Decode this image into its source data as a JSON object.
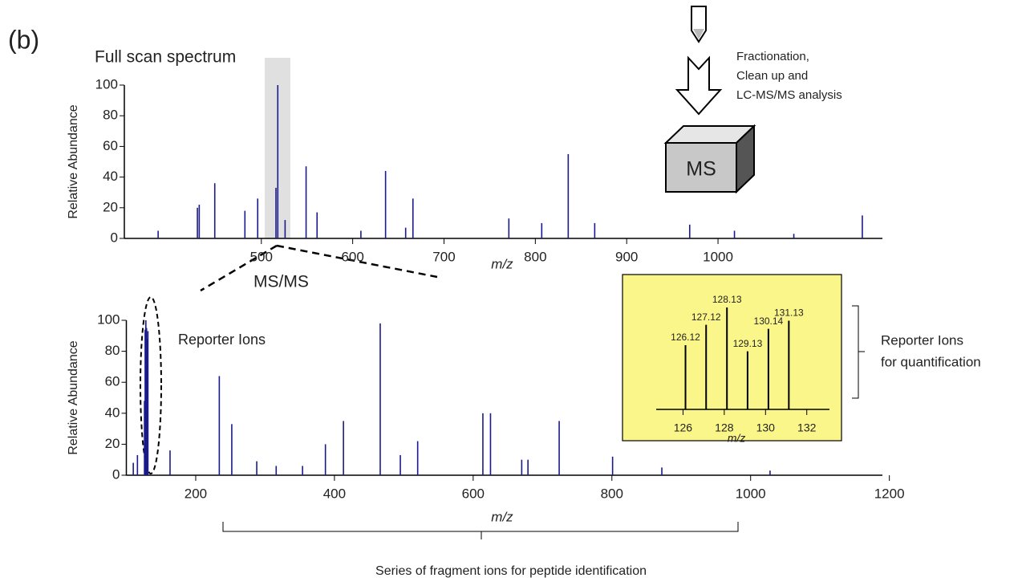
{
  "annotations": {
    "panel_label": "(b)",
    "workflow": [
      "Fractionation,",
      "Clean up and",
      "LC-MS/MS analysis"
    ],
    "instrument": "MS",
    "msms": "MS/MS",
    "reporter_ions": "Reporter Ions",
    "reporter_quant": [
      "Reporter Ions",
      "for quantification"
    ],
    "fragment_series": "Series of fragment ions for peptide identification"
  },
  "chart_data": [
    {
      "type": "stem",
      "title": "Full scan spectrum",
      "xlabel": "m/z",
      "ylabel": "Relative Abundance",
      "color": "#1a1a8c",
      "xlim": [
        350,
        1180
      ],
      "ylim": [
        0,
        100
      ],
      "xticks": [
        500,
        600,
        700,
        800,
        900,
        1000
      ],
      "yticks": [
        0,
        20,
        40,
        60,
        80,
        100
      ],
      "x": [
        387,
        430,
        432,
        449,
        482,
        496,
        516,
        518,
        526,
        549,
        561,
        609,
        636,
        658,
        666,
        771,
        807,
        836,
        865,
        969,
        1018,
        1083,
        1158
      ],
      "values": [
        5,
        20,
        22,
        36,
        18,
        26,
        33,
        100,
        12,
        47,
        17,
        5,
        44,
        7,
        26,
        13,
        10,
        55,
        10,
        9,
        5,
        3,
        15
      ]
    },
    {
      "type": "stem",
      "xlabel": "m/z",
      "ylabel": "Relative Abundance",
      "color": "#1a1a8c",
      "xlim": [
        100,
        1190
      ],
      "ylim": [
        0,
        100
      ],
      "xticks": [
        200,
        400,
        600,
        800,
        1000,
        1200
      ],
      "yticks": [
        0,
        20,
        40,
        60,
        80,
        100
      ],
      "x": [
        110,
        116,
        126.13,
        127.12,
        128.13,
        129.13,
        130.14,
        131.13,
        163,
        234,
        252,
        288,
        316,
        354,
        387,
        413,
        466,
        495,
        520,
        614,
        625,
        670,
        679,
        724,
        801,
        872,
        1028
      ],
      "values": [
        8,
        13,
        48,
        94,
        100,
        95,
        88,
        93,
        16,
        64,
        33,
        9,
        6,
        6,
        20,
        35,
        98,
        13,
        22,
        40,
        40,
        10,
        10,
        35,
        12,
        5,
        3
      ]
    },
    {
      "type": "stem",
      "xlabel": "m/z",
      "color": "#000000",
      "peak_labels": true,
      "xlim": [
        124.7,
        133.1
      ],
      "ylim": [
        0,
        100
      ],
      "xticks": [
        126,
        128,
        130,
        132
      ],
      "x": [
        126.12,
        127.12,
        128.13,
        129.13,
        130.14,
        131.13
      ],
      "values": [
        63,
        83,
        100,
        57,
        79,
        87
      ]
    }
  ]
}
